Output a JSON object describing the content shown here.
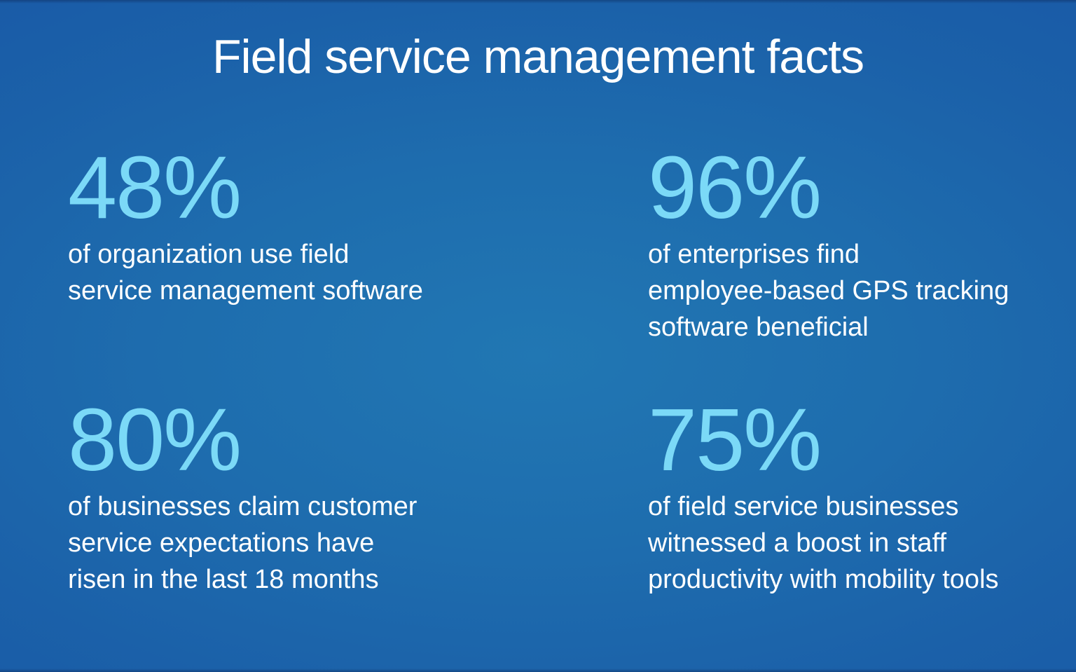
{
  "title": "Field service management facts",
  "theme": {
    "background_center_color": "#2076B2",
    "background_edge_color": "#1956A6",
    "accent_color": "#7BD9F7",
    "text_color": "#FFFFFF"
  },
  "stats": [
    {
      "value": "48%",
      "description": "of organization use field\nservice management software"
    },
    {
      "value": "96%",
      "description": "of enterprises find\nemployee-based GPS tracking\nsoftware beneficial"
    },
    {
      "value": "80%",
      "description": "of businesses claim customer\nservice expectations have\nrisen in the last 18 months"
    },
    {
      "value": "75%",
      "description": "of field service businesses\nwitnessed a boost in staff\nproductivity with mobility tools"
    }
  ]
}
